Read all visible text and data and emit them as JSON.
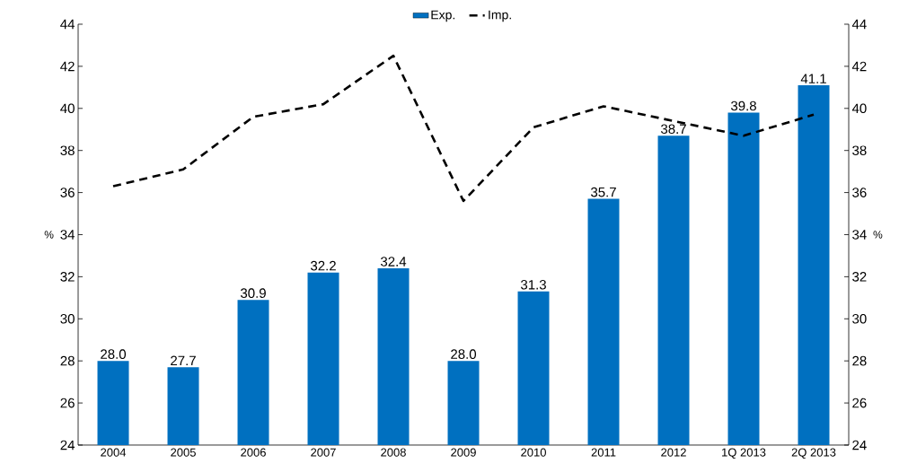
{
  "chart_data": {
    "type": "bar",
    "ylabel": "%",
    "y2label": "%",
    "categories": [
      "2004",
      "2005",
      "2006",
      "2007",
      "2008",
      "2009",
      "2010",
      "2011",
      "2012",
      "1Q 2013",
      "2Q 2013"
    ],
    "series": [
      {
        "name": "Exp.",
        "color": "#0070c0",
        "values": [
          28.0,
          27.7,
          30.9,
          32.2,
          32.4,
          28.0,
          31.3,
          35.7,
          38.7,
          39.8,
          41.1
        ],
        "value_labels": [
          "28.0",
          "27.7",
          "30.9",
          "32.2",
          "32.4",
          "28.0",
          "31.3",
          "35.7",
          "38.7",
          "39.8",
          "41.1"
        ]
      },
      {
        "name": "Imp.",
        "type": "line",
        "axis": "y2",
        "color": "#000000",
        "line_style": "dashed",
        "marker": "none",
        "values": [
          36.3,
          37.1,
          39.6,
          40.2,
          42.5,
          35.6,
          39.1,
          40.1,
          39.4,
          38.7,
          39.7
        ]
      }
    ],
    "ylim": [
      24,
      44
    ],
    "yticks": [
      24,
      26,
      28,
      30,
      32,
      34,
      36,
      38,
      40,
      42,
      44
    ],
    "y2lim": [
      24,
      44
    ],
    "y2ticks": [
      24,
      26,
      28,
      30,
      32,
      34,
      36,
      38,
      40,
      42,
      44
    ],
    "legend": "top",
    "grid": false
  }
}
